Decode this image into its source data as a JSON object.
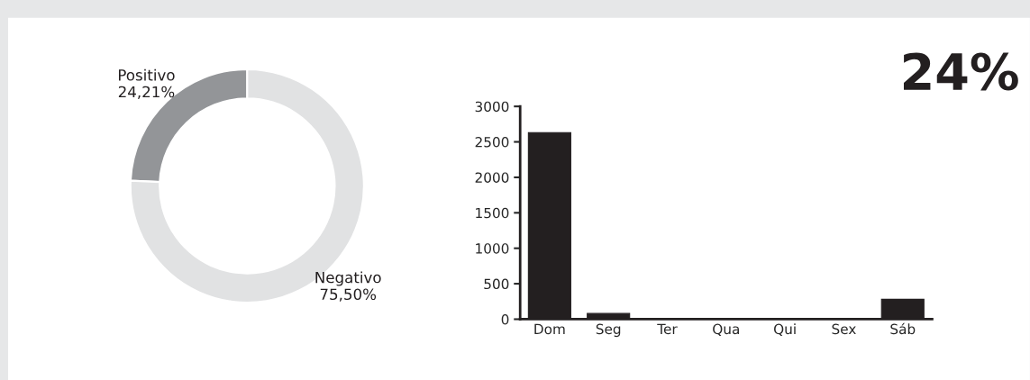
{
  "chart_data": [
    {
      "type": "donut",
      "categories": [
        "Positivo",
        "Negativo"
      ],
      "values": [
        24.21,
        75.5
      ],
      "colors": [
        "#939598",
        "#e1e2e3"
      ],
      "value_labels": [
        "24,21%",
        "75,50%"
      ]
    },
    {
      "type": "bar",
      "categories": [
        "Dom",
        "Seg",
        "Ter",
        "Qua",
        "Qui",
        "Sex",
        "Sáb"
      ],
      "values": [
        2630,
        80,
        0,
        0,
        0,
        0,
        280
      ],
      "color": "#231f20",
      "ylim": [
        0,
        3000
      ],
      "yticks": [
        0,
        500,
        1000,
        1500,
        2000,
        2500,
        3000
      ],
      "grid": false
    },
    {
      "type": "other",
      "annotations": [
        "24%"
      ]
    }
  ]
}
